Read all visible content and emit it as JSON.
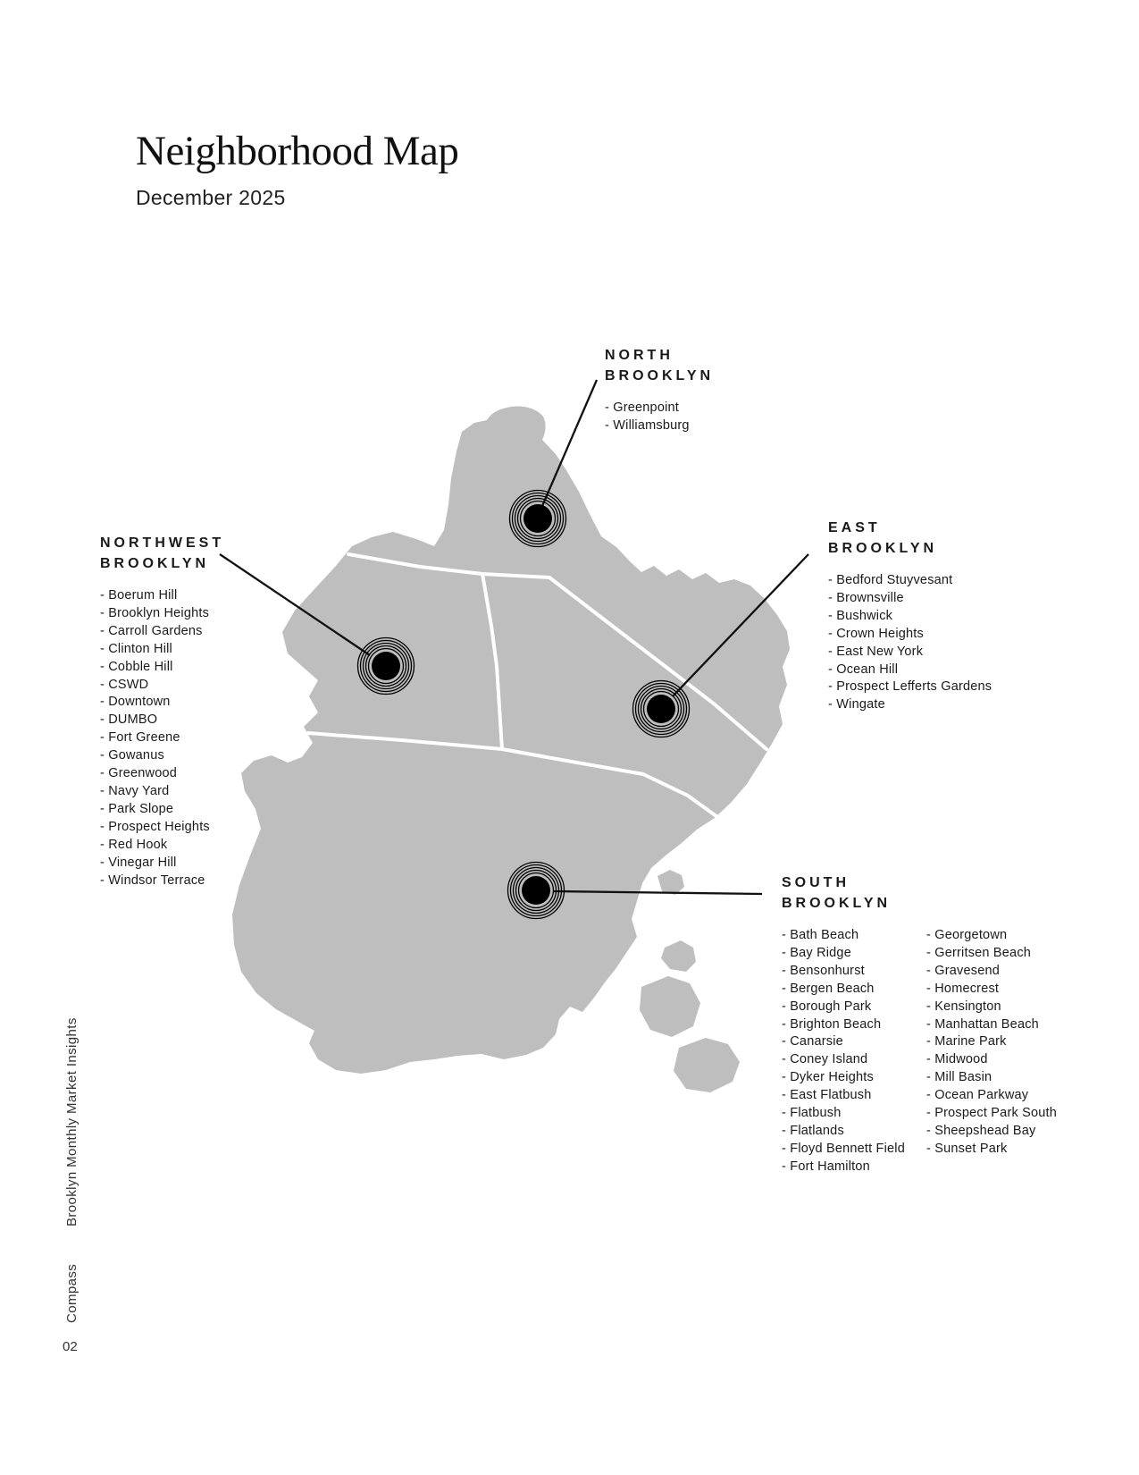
{
  "page": {
    "title": "Neighborhood Map",
    "subtitle": "December 2025",
    "page_number": "02"
  },
  "footer": {
    "report_name": "Brooklyn Monthly Market Insights",
    "brand": "Compass"
  },
  "colors": {
    "map_fill": "#bebebe",
    "region_border": "#ffffff",
    "marker_color": "#000000",
    "text_color": "#1a1a1a"
  },
  "regions": {
    "north": {
      "name": [
        "NORTH",
        "BROOKLYN"
      ],
      "items": [
        "Greenpoint",
        "Williamsburg"
      ]
    },
    "northwest": {
      "name": [
        "NORTHWEST",
        "BROOKLYN"
      ],
      "items": [
        "Boerum Hill",
        "Brooklyn Heights",
        "Carroll Gardens",
        "Clinton Hill",
        "Cobble Hill",
        "CSWD",
        "Downtown",
        "DUMBO",
        "Fort Greene",
        "Gowanus",
        "Greenwood",
        "Navy Yard",
        "Park Slope",
        "Prospect Heights",
        "Red Hook",
        "Vinegar Hill",
        "Windsor Terrace"
      ]
    },
    "east": {
      "name": [
        "EAST",
        "BROOKLYN"
      ],
      "items": [
        "Bedford Stuyvesant",
        "Brownsville",
        "Bushwick",
        "Crown Heights",
        "East New York",
        "Ocean Hill",
        "Prospect Lefferts Gardens",
        "Wingate"
      ]
    },
    "south": {
      "name": [
        "SOUTH",
        "BROOKLYN"
      ],
      "items_col1": [
        "Bath Beach",
        "Bay Ridge",
        "Bensonhurst",
        "Bergen Beach",
        "Borough Park",
        "Brighton Beach",
        "Canarsie",
        "Coney Island",
        "Dyker Heights",
        "East Flatbush",
        "Flatbush",
        "Flatlands",
        "Floyd Bennett Field",
        "Fort Hamilton"
      ],
      "items_col2": [
        "Georgetown",
        "Gerritsen Beach",
        "Gravesend",
        "Homecrest",
        "Kensington",
        "Manhattan Beach",
        "Marine Park",
        "Midwood",
        "Mill Basin",
        "Ocean Parkway",
        "Prospect Park South",
        "Sheepshead Bay",
        "Sunset Park"
      ]
    }
  }
}
